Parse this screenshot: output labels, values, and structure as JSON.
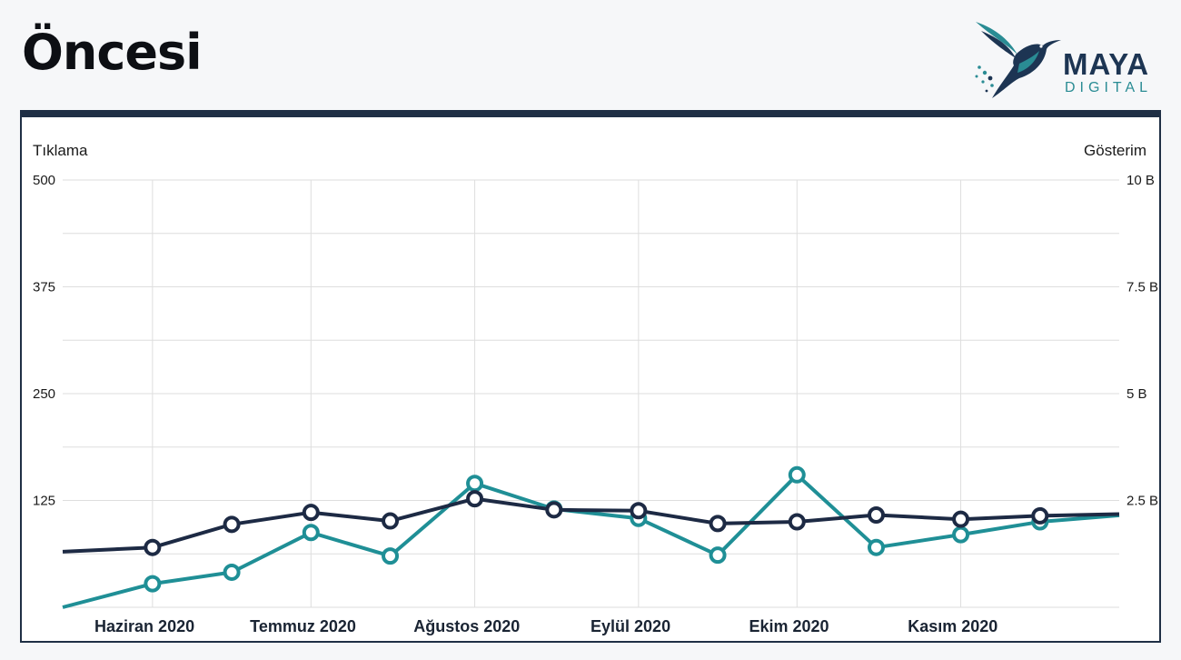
{
  "page": {
    "title": "Öncesi"
  },
  "logo": {
    "name": "MAYA",
    "subtitle": "DIGITAL",
    "mark_icon": "hummingbird-icon"
  },
  "colors": {
    "clicks_series": "#1d2a44",
    "impressions_series": "#1f8f96",
    "grid": "#dedede",
    "frame": "#1f2f45"
  },
  "chart_data": {
    "type": "line",
    "ylabel_left": "Tıklama",
    "ylabel_right": "Gösterim",
    "x_tick_labels": [
      "Haziran 2020",
      "Temmuz 2020",
      "Ağustos 2020",
      "Eylül 2020",
      "Ekim 2020",
      "Kasım 2020"
    ],
    "y_left": {
      "range": [
        0,
        500
      ],
      "ticks": [
        125,
        250,
        375,
        500
      ],
      "tick_labels": [
        "125",
        "250",
        "375",
        "500"
      ]
    },
    "y_right": {
      "range": [
        0,
        10
      ],
      "unit": "B",
      "ticks": [
        2.5,
        5,
        7.5,
        10
      ],
      "tick_labels": [
        "2.5 B",
        "5 B",
        "7.5 B",
        "10 B"
      ]
    },
    "grid": true,
    "x": [
      "2020-05-15",
      "2020-06-01",
      "2020-06-16",
      "2020-07-01",
      "2020-07-16",
      "2020-08-01",
      "2020-08-16",
      "2020-09-01",
      "2020-09-16",
      "2020-10-01",
      "2020-10-16",
      "2020-11-01",
      "2020-11-16",
      "2020-12-01"
    ],
    "series": [
      {
        "axis": "left",
        "values": [
          65,
          70,
          97,
          111,
          101,
          127,
          114,
          113,
          98,
          100,
          108,
          103,
          107,
          null
        ],
        "markers": [
          false,
          true,
          true,
          true,
          true,
          true,
          true,
          true,
          true,
          true,
          true,
          true,
          true,
          false
        ]
      },
      {
        "axis": "right",
        "values": [
          0.0,
          0.55,
          0.82,
          1.75,
          1.2,
          2.9,
          2.3,
          2.08,
          1.22,
          3.1,
          1.4,
          1.7,
          2.0,
          null
        ],
        "markers": [
          false,
          true,
          true,
          true,
          true,
          true,
          true,
          true,
          true,
          true,
          true,
          true,
          true,
          false
        ]
      }
    ]
  }
}
